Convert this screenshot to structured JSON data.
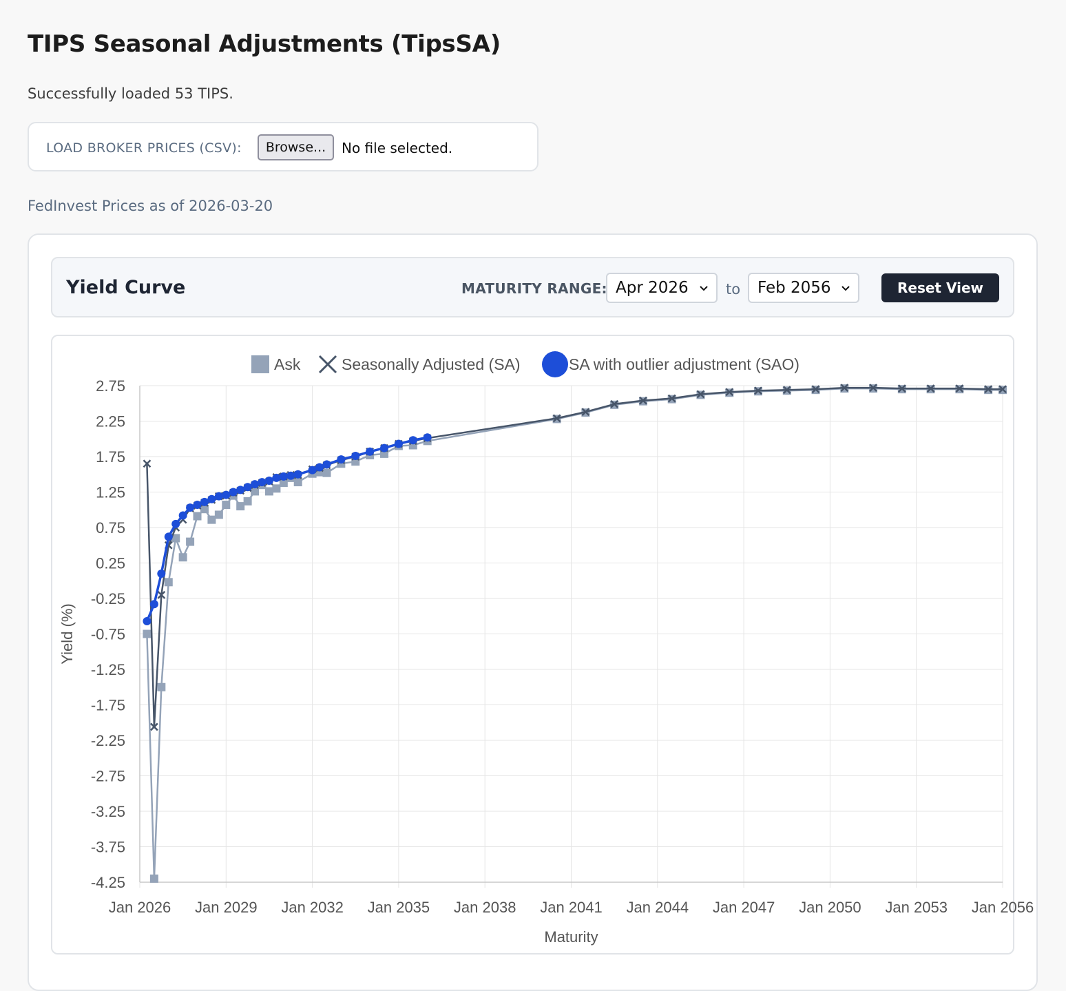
{
  "header": {
    "title": "TIPS Seasonal Adjustments (TipsSA)",
    "status": "Successfully loaded 53 TIPS."
  },
  "file_loader": {
    "label": "LOAD BROKER PRICES (CSV):",
    "browse_label": "Browse...",
    "file_status": "No file selected."
  },
  "prices_as_of": "FedInvest Prices as of 2026-03-20",
  "toolbar": {
    "title": "Yield Curve",
    "range_label": "MATURITY RANGE:",
    "range_start": "Apr 2026",
    "range_separator": "to",
    "range_end": "Feb 2056",
    "reset_label": "Reset View"
  },
  "colors": {
    "ask": "#94a3b8",
    "sa": "#475569",
    "sao": "#1d4ed8",
    "grid": "#e5e5e5"
  },
  "chart_data": {
    "type": "line",
    "xlabel": "Maturity",
    "ylabel": "Yield (%)",
    "xlim": [
      2026.0,
      2056.0
    ],
    "ylim": [
      -4.25,
      2.75
    ],
    "x_ticks": [
      "Jan 2026",
      "Jan 2029",
      "Jan 2032",
      "Jan 2035",
      "Jan 2038",
      "Jan 2041",
      "Jan 2044",
      "Jan 2047",
      "Jan 2050",
      "Jan 2053",
      "Jan 2056"
    ],
    "x_tick_values": [
      2026,
      2029,
      2032,
      2035,
      2038,
      2041,
      2044,
      2047,
      2050,
      2053,
      2056
    ],
    "y_ticks": [
      "2.75",
      "2.25",
      "1.75",
      "1.25",
      "0.75",
      "0.25",
      "-0.25",
      "-0.75",
      "-1.25",
      "-1.75",
      "-2.25",
      "-2.75",
      "-3.25",
      "-3.75",
      "-4.25"
    ],
    "y_tick_values": [
      2.75,
      2.25,
      1.75,
      1.25,
      0.75,
      0.25,
      -0.25,
      -0.75,
      -1.25,
      -1.75,
      -2.25,
      -2.75,
      -3.25,
      -3.75,
      -4.25
    ],
    "legend": {
      "position": "top",
      "items": [
        "Ask",
        "Seasonally Adjusted (SA)",
        "SA with outlier adjustment (SAO)"
      ]
    },
    "grid": true,
    "series": [
      {
        "name": "Ask",
        "marker": "square",
        "x": [
          2026.25,
          2026.5,
          2026.75,
          2027.0,
          2027.25,
          2027.5,
          2027.75,
          2028.0,
          2028.25,
          2028.5,
          2028.75,
          2029.0,
          2029.25,
          2029.5,
          2029.75,
          2030.0,
          2030.25,
          2030.5,
          2030.75,
          2031.0,
          2031.25,
          2031.5,
          2032.0,
          2032.25,
          2032.5,
          2033.0,
          2033.5,
          2034.0,
          2034.5,
          2035.0,
          2035.5,
          2036.0,
          2040.5,
          2041.5,
          2042.5,
          2043.5,
          2044.5,
          2045.5,
          2046.5,
          2047.5,
          2048.5,
          2049.5,
          2050.5,
          2051.5,
          2052.5,
          2053.5,
          2054.5,
          2055.5,
          2056.0
        ],
        "values": [
          -0.75,
          -4.2,
          -1.5,
          -0.02,
          0.6,
          0.33,
          0.55,
          0.91,
          1.01,
          0.86,
          0.93,
          1.07,
          1.2,
          1.05,
          1.12,
          1.26,
          1.35,
          1.26,
          1.3,
          1.38,
          1.45,
          1.39,
          1.51,
          1.53,
          1.52,
          1.65,
          1.68,
          1.77,
          1.79,
          1.9,
          1.91,
          1.97,
          2.28,
          2.37,
          2.48,
          2.53,
          2.56,
          2.62,
          2.65,
          2.67,
          2.68,
          2.69,
          2.71,
          2.71,
          2.7,
          2.7,
          2.7,
          2.69,
          2.69
        ]
      },
      {
        "name": "Seasonally Adjusted (SA)",
        "marker": "cross",
        "x": [
          2026.25,
          2026.5,
          2026.75,
          2027.0,
          2027.25,
          2027.5,
          2027.75,
          2028.0,
          2028.25,
          2028.5,
          2028.75,
          2029.0,
          2029.25,
          2029.5,
          2029.75,
          2030.0,
          2030.25,
          2030.5,
          2030.75,
          2031.0,
          2031.25,
          2031.5,
          2032.0,
          2032.25,
          2032.5,
          2033.0,
          2033.5,
          2034.0,
          2034.5,
          2035.0,
          2035.5,
          2036.0,
          2040.5,
          2041.5,
          2042.5,
          2043.5,
          2044.5,
          2045.5,
          2046.5,
          2047.5,
          2048.5,
          2049.5,
          2050.5,
          2051.5,
          2052.5,
          2053.5,
          2054.5,
          2055.5,
          2056.0
        ],
        "values": [
          1.65,
          -2.06,
          -0.2,
          0.5,
          0.75,
          0.86,
          1.02,
          1.06,
          1.1,
          1.14,
          1.19,
          1.2,
          1.24,
          1.27,
          1.31,
          1.35,
          1.38,
          1.4,
          1.46,
          1.47,
          1.49,
          1.49,
          1.57,
          1.59,
          1.63,
          1.7,
          1.75,
          1.82,
          1.87,
          1.93,
          1.97,
          2.01,
          2.29,
          2.38,
          2.49,
          2.54,
          2.57,
          2.63,
          2.66,
          2.68,
          2.69,
          2.7,
          2.72,
          2.72,
          2.71,
          2.71,
          2.71,
          2.7,
          2.7
        ]
      },
      {
        "name": "SA with outlier adjustment (SAO)",
        "marker": "circle",
        "x": [
          2026.25,
          2026.5,
          2026.75,
          2027.0,
          2027.25,
          2027.5,
          2027.75,
          2028.0,
          2028.25,
          2028.5,
          2028.75,
          2029.0,
          2029.25,
          2029.5,
          2029.75,
          2030.0,
          2030.25,
          2030.5,
          2030.75,
          2031.0,
          2031.25,
          2031.5,
          2032.0,
          2032.25,
          2032.5,
          2033.0,
          2033.5,
          2034.0,
          2034.5,
          2035.0,
          2035.5,
          2036.0
        ],
        "values": [
          -0.57,
          -0.33,
          0.1,
          0.62,
          0.8,
          0.92,
          1.03,
          1.07,
          1.11,
          1.15,
          1.19,
          1.21,
          1.25,
          1.28,
          1.32,
          1.36,
          1.39,
          1.41,
          1.45,
          1.47,
          1.48,
          1.5,
          1.56,
          1.6,
          1.64,
          1.71,
          1.76,
          1.82,
          1.87,
          1.93,
          1.98,
          2.02
        ]
      }
    ]
  }
}
